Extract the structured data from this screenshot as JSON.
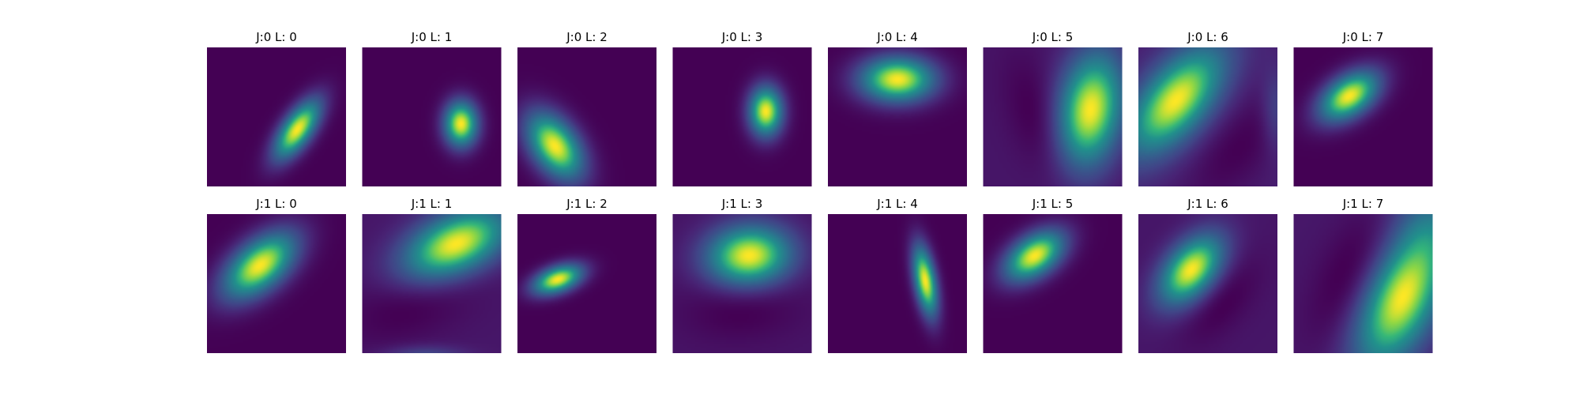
{
  "colors": {
    "colormap": "viridis",
    "background_low": "#440154",
    "peak": "#fde725"
  },
  "chart_data": {
    "type": "heatmap",
    "title": "",
    "grid": false,
    "rows": 2,
    "cols": 8,
    "panels": [
      {
        "title": "J:0 L: 0",
        "row": 0,
        "col": 0,
        "blobs": [
          {
            "cx": 0.65,
            "cy": 0.59,
            "sx": 0.075,
            "sy": 0.175,
            "rot": 35,
            "amp": 1.0
          }
        ],
        "floor": 0.0
      },
      {
        "title": "J:0 L: 1",
        "row": 0,
        "col": 1,
        "blobs": [
          {
            "cx": 0.71,
            "cy": 0.55,
            "sx": 0.085,
            "sy": 0.115,
            "rot": 0,
            "amp": 1.0
          }
        ],
        "floor": 0.0
      },
      {
        "title": "J:0 L: 2",
        "row": 0,
        "col": 2,
        "blobs": [
          {
            "cx": 0.27,
            "cy": 0.71,
            "sx": 0.115,
            "sy": 0.19,
            "rot": -35,
            "amp": 1.0
          }
        ],
        "floor": 0.0
      },
      {
        "title": "J:0 L: 3",
        "row": 0,
        "col": 3,
        "blobs": [
          {
            "cx": 0.67,
            "cy": 0.46,
            "sx": 0.085,
            "sy": 0.125,
            "rot": 0,
            "amp": 1.0
          }
        ],
        "floor": 0.0
      },
      {
        "title": "J:0 L: 4",
        "row": 0,
        "col": 4,
        "blobs": [
          {
            "cx": 0.5,
            "cy": 0.23,
            "sx": 0.19,
            "sy": 0.115,
            "rot": 0,
            "amp": 1.0
          }
        ],
        "floor": 0.0
      },
      {
        "title": "J:0 L: 5",
        "row": 0,
        "col": 5,
        "blobs": [
          {
            "cx": 0.77,
            "cy": 0.45,
            "sx": 0.16,
            "sy": 0.29,
            "rot": 10,
            "amp": 1.0
          },
          {
            "cx": 0.42,
            "cy": 0.55,
            "sx": 0.14,
            "sy": 0.33,
            "rot": -20,
            "amp": -0.12
          }
        ],
        "floor": 0.12
      },
      {
        "title": "J:0 L: 6",
        "row": 0,
        "col": 6,
        "blobs": [
          {
            "cx": 0.27,
            "cy": 0.38,
            "sx": 0.16,
            "sy": 0.32,
            "rot": 40,
            "amp": 1.0
          },
          {
            "cx": 0.72,
            "cy": 0.72,
            "sx": 0.16,
            "sy": 0.34,
            "rot": 40,
            "amp": -0.12
          },
          {
            "cx": 0.99,
            "cy": 0.45,
            "sx": 0.07,
            "sy": 0.2,
            "rot": 0,
            "amp": 0.2
          }
        ],
        "floor": 0.12
      },
      {
        "title": "J:0 L: 7",
        "row": 0,
        "col": 7,
        "blobs": [
          {
            "cx": 0.4,
            "cy": 0.35,
            "sx": 0.1,
            "sy": 0.17,
            "rot": 55,
            "amp": 1.0
          }
        ],
        "floor": 0.0
      },
      {
        "title": "J:1 L: 0",
        "row": 1,
        "col": 0,
        "blobs": [
          {
            "cx": 0.38,
            "cy": 0.37,
            "sx": 0.12,
            "sy": 0.22,
            "rot": 50,
            "amp": 1.0
          }
        ],
        "floor": 0.0
      },
      {
        "title": "J:1 L: 1",
        "row": 1,
        "col": 1,
        "blobs": [
          {
            "cx": 0.67,
            "cy": 0.22,
            "sx": 0.15,
            "sy": 0.28,
            "rot": 65,
            "amp": 1.0
          },
          {
            "cx": 0.38,
            "cy": 0.6,
            "sx": 0.18,
            "sy": 0.35,
            "rot": 65,
            "amp": -0.12
          },
          {
            "cx": 0.45,
            "cy": 1.02,
            "sx": 0.2,
            "sy": 0.05,
            "rot": 0,
            "amp": 0.22
          }
        ],
        "floor": 0.12
      },
      {
        "title": "J:1 L: 2",
        "row": 1,
        "col": 2,
        "blobs": [
          {
            "cx": 0.29,
            "cy": 0.47,
            "sx": 0.065,
            "sy": 0.13,
            "rot": 70,
            "amp": 1.0
          }
        ],
        "floor": 0.0
      },
      {
        "title": "J:1 L: 3",
        "row": 1,
        "col": 3,
        "blobs": [
          {
            "cx": 0.55,
            "cy": 0.3,
            "sx": 0.15,
            "sy": 0.21,
            "rot": 85,
            "amp": 1.0
          },
          {
            "cx": 0.5,
            "cy": 0.66,
            "sx": 0.16,
            "sy": 0.28,
            "rot": 85,
            "amp": -0.1
          }
        ],
        "floor": 0.1
      },
      {
        "title": "J:1 L: 4",
        "row": 1,
        "col": 4,
        "blobs": [
          {
            "cx": 0.7,
            "cy": 0.48,
            "sx": 0.055,
            "sy": 0.18,
            "rot": -10,
            "amp": 1.0
          }
        ],
        "floor": 0.0
      },
      {
        "title": "J:1 L: 5",
        "row": 1,
        "col": 5,
        "blobs": [
          {
            "cx": 0.37,
            "cy": 0.3,
            "sx": 0.1,
            "sy": 0.17,
            "rot": 55,
            "amp": 1.0
          }
        ],
        "floor": 0.0
      },
      {
        "title": "J:1 L: 6",
        "row": 1,
        "col": 6,
        "blobs": [
          {
            "cx": 0.38,
            "cy": 0.4,
            "sx": 0.12,
            "sy": 0.2,
            "rot": 40,
            "amp": 1.0
          },
          {
            "cx": 0.6,
            "cy": 0.63,
            "sx": 0.12,
            "sy": 0.25,
            "rot": 40,
            "amp": -0.1
          }
        ],
        "floor": 0.1
      },
      {
        "title": "J:1 L: 7",
        "row": 1,
        "col": 7,
        "blobs": [
          {
            "cx": 0.78,
            "cy": 0.6,
            "sx": 0.18,
            "sy": 0.38,
            "rot": 25,
            "amp": 1.0
          },
          {
            "cx": 0.42,
            "cy": 0.45,
            "sx": 0.16,
            "sy": 0.36,
            "rot": 25,
            "amp": -0.14
          },
          {
            "cx": 0.98,
            "cy": 0.05,
            "sx": 0.2,
            "sy": 0.2,
            "rot": 0,
            "amp": 0.2
          }
        ],
        "floor": 0.14
      }
    ]
  }
}
